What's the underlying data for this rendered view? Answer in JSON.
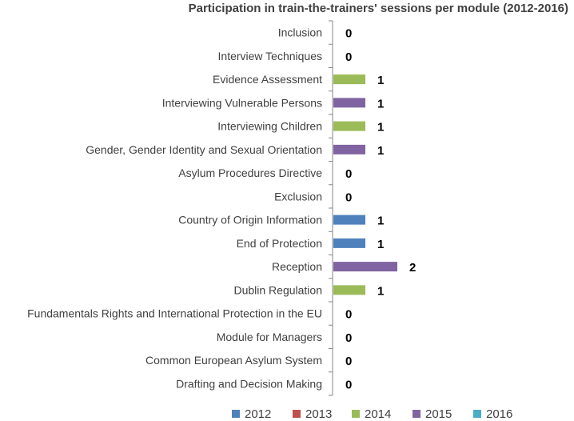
{
  "chart_data": {
    "type": "bar",
    "orientation": "horizontal",
    "title": "Participation in train-the-trainers' sessions per module (2012-2016)",
    "categories": [
      "Inclusion",
      "Interview Techniques",
      "Evidence Assessment",
      "Interviewing Vulnerable Persons",
      "Interviewing Children",
      "Gender, Gender Identity and Sexual Orientation",
      "Asylum Procedures Directive ",
      "Exclusion",
      "Country of Origin Information",
      "End of Protection ",
      "Reception",
      "Dublin Regulation",
      "Fundamentals Rights and International Protection in the EU",
      "Module for Managers",
      "Common European Asylum System",
      "Drafting and Decision Making"
    ],
    "values": [
      0,
      0,
      1,
      1,
      1,
      1,
      0,
      0,
      1,
      1,
      2,
      1,
      0,
      0,
      0,
      0
    ],
    "bar_series": [
      "",
      "",
      "2014",
      "2015",
      "2014",
      "2015",
      "",
      "",
      "2012",
      "2012",
      "2015",
      "2014",
      "",
      "",
      "",
      ""
    ],
    "series": [
      {
        "name": "2012",
        "color": "#4F81BD"
      },
      {
        "name": "2013",
        "color": "#C0504D"
      },
      {
        "name": "2014",
        "color": "#9BBB59"
      },
      {
        "name": "2015",
        "color": "#8064A2"
      },
      {
        "name": "2016",
        "color": "#4BACC6"
      }
    ],
    "xlim": [
      0,
      2
    ],
    "legend_position": "bottom",
    "grid": false
  }
}
